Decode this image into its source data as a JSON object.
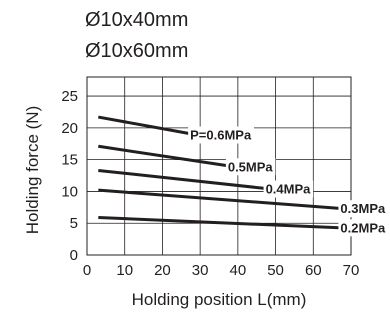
{
  "chart_data": {
    "type": "line",
    "title_lines": [
      "Ø10x40mm",
      "Ø10x60mm"
    ],
    "xlabel": "Holding position L(mm)",
    "ylabel": "Holding force (N)",
    "xlim": [
      0,
      70
    ],
    "ylim": [
      0,
      28
    ],
    "x_ticks": [
      0,
      10,
      20,
      30,
      40,
      50,
      60,
      70
    ],
    "y_ticks": [
      0,
      5,
      10,
      15,
      20,
      25
    ],
    "grid": true,
    "series": [
      {
        "name": "P=0.6MPa",
        "x": [
          3,
          30
        ],
        "y": [
          21.7,
          18.8
        ]
      },
      {
        "name": "0.5MPa",
        "x": [
          3,
          40
        ],
        "y": [
          17.1,
          13.8
        ]
      },
      {
        "name": "0.4MPa",
        "x": [
          3,
          50
        ],
        "y": [
          13.3,
          10.3
        ]
      },
      {
        "name": "0.3MPa",
        "x": [
          3,
          70
        ],
        "y": [
          10.2,
          7.2
        ]
      },
      {
        "name": "0.2MPa",
        "x": [
          3,
          70
        ],
        "y": [
          5.9,
          4.2
        ]
      }
    ]
  }
}
